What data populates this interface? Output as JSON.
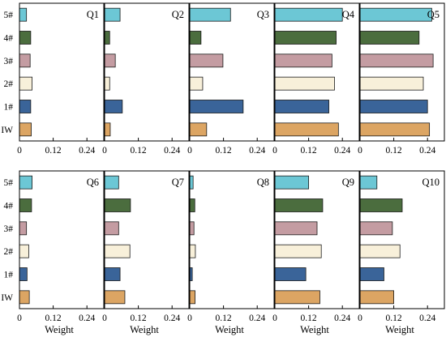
{
  "chart_data": {
    "type": "bar",
    "orientation": "horizontal",
    "xlabel": "Weight",
    "xlim": [
      0,
      0.3
    ],
    "xticks": [
      0,
      0.12,
      0.24
    ],
    "xtick_labels": [
      "0",
      "0.12",
      "0.24"
    ],
    "categories": [
      "5#",
      "4#",
      "3#",
      "2#",
      "1#",
      "IW"
    ],
    "colors": {
      "5#": "#6cc7d5",
      "4#": "#4b6d3e",
      "3#": "#c49ca2",
      "2#": "#f8f0da",
      "1#": "#3a6499",
      "IW": "#dca563"
    },
    "grid": false,
    "panels": [
      {
        "title": "Q1",
        "values": [
          0.025,
          0.04,
          0.038,
          0.045,
          0.04,
          0.042
        ]
      },
      {
        "title": "Q2",
        "values": [
          0.055,
          0.018,
          0.038,
          0.018,
          0.063,
          0.02
        ]
      },
      {
        "title": "Q3",
        "values": [
          0.145,
          0.04,
          0.118,
          0.046,
          0.19,
          0.06
        ]
      },
      {
        "title": "Q4",
        "values": [
          0.24,
          0.218,
          0.203,
          0.212,
          0.192,
          0.226
        ]
      },
      {
        "title": "Q5",
        "values": [
          0.255,
          0.21,
          0.26,
          0.225,
          0.24,
          0.247
        ]
      },
      {
        "title": "Q6",
        "values": [
          0.045,
          0.043,
          0.025,
          0.033,
          0.027,
          0.035
        ]
      },
      {
        "title": "Q7",
        "values": [
          0.05,
          0.092,
          0.05,
          0.09,
          0.055,
          0.072
        ]
      },
      {
        "title": "Q8",
        "values": [
          0.012,
          0.018,
          0.015,
          0.02,
          0.009,
          0.019
        ]
      },
      {
        "title": "Q9",
        "values": [
          0.12,
          0.17,
          0.15,
          0.165,
          0.11,
          0.16
        ]
      },
      {
        "title": "Q10",
        "values": [
          0.06,
          0.15,
          0.115,
          0.142,
          0.085,
          0.12
        ]
      }
    ]
  }
}
